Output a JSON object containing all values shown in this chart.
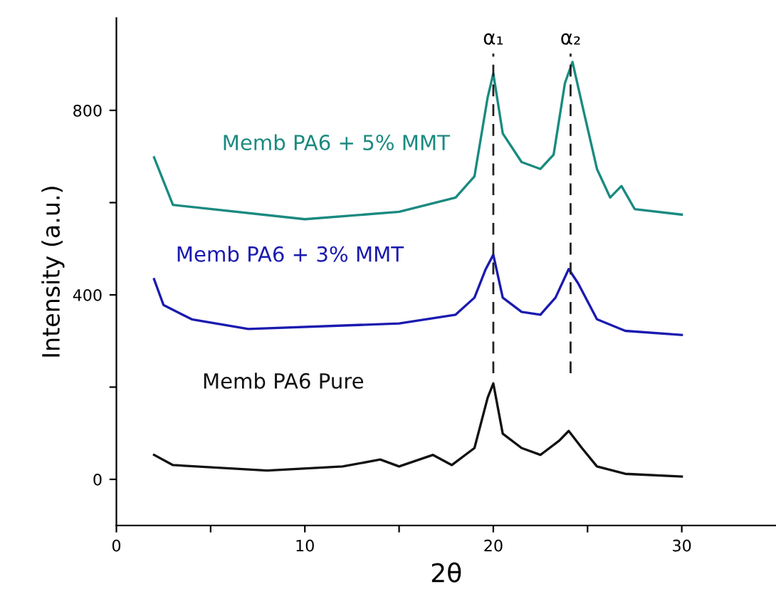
{
  "chart_data": {
    "type": "line",
    "xlabel": "2θ",
    "ylabel": "Intensity (a.u.)",
    "xlim": [
      0,
      35
    ],
    "xticks": [
      0,
      {
        "value": 5,
        "label": null
      },
      10,
      {
        "value": 15,
        "label": null
      },
      20,
      {
        "value": 25,
        "label": null
      },
      30
    ],
    "ylim": [
      -100,
      1000
    ],
    "yticks": [
      0,
      {
        "value": 200,
        "label": null
      },
      400,
      {
        "value": 600,
        "label": null
      },
      800
    ],
    "grid": false,
    "marker": "none",
    "line_style": "solid",
    "series": [
      {
        "name": "Memb PA6 + 5% MMT",
        "color": "#1a8a80",
        "x": [
          2,
          3,
          10,
          15,
          18,
          19,
          19.7,
          20,
          20.5,
          21.5,
          22.5,
          23.2,
          23.8,
          24.2,
          24.8,
          25.5,
          26.2,
          26.8,
          27.5,
          30
        ],
        "values": [
          698,
          595,
          564,
          580,
          611,
          657,
          828,
          880,
          750,
          688,
          673,
          704,
          859,
          905,
          797,
          673,
          611,
          636,
          586,
          574
        ]
      },
      {
        "name": "Memb PA6 + 3% MMT",
        "color": "#1a1ab0",
        "x": [
          2,
          2.5,
          4,
          7,
          15,
          18,
          19,
          19.6,
          20,
          20.5,
          21.5,
          22.5,
          23.3,
          24,
          24.5,
          25.5,
          27,
          30
        ],
        "values": [
          434,
          378,
          347,
          326,
          338,
          357,
          394,
          456,
          487,
          394,
          363,
          357,
          394,
          456,
          425,
          347,
          322,
          313
        ]
      },
      {
        "name": "Memb PA6 Pure",
        "color": "#111111",
        "x": [
          2,
          3,
          8,
          12,
          14,
          15,
          16.8,
          17.8,
          19,
          19.7,
          20,
          20.5,
          21.5,
          22.5,
          23.5,
          24,
          24.7,
          25.5,
          27,
          30
        ],
        "values": [
          53,
          31,
          19,
          28,
          43,
          28,
          53,
          31,
          68,
          177,
          208,
          99,
          68,
          53,
          84,
          105,
          68,
          28,
          12,
          6
        ]
      }
    ],
    "ref_lines": [
      {
        "axis": "x",
        "value": 20,
        "label": "α₁",
        "color": "#222222",
        "line_style": "dashed"
      },
      {
        "axis": "x",
        "value": 24.1,
        "label": "α₂",
        "color": "#222222",
        "line_style": "dashed"
      }
    ]
  }
}
